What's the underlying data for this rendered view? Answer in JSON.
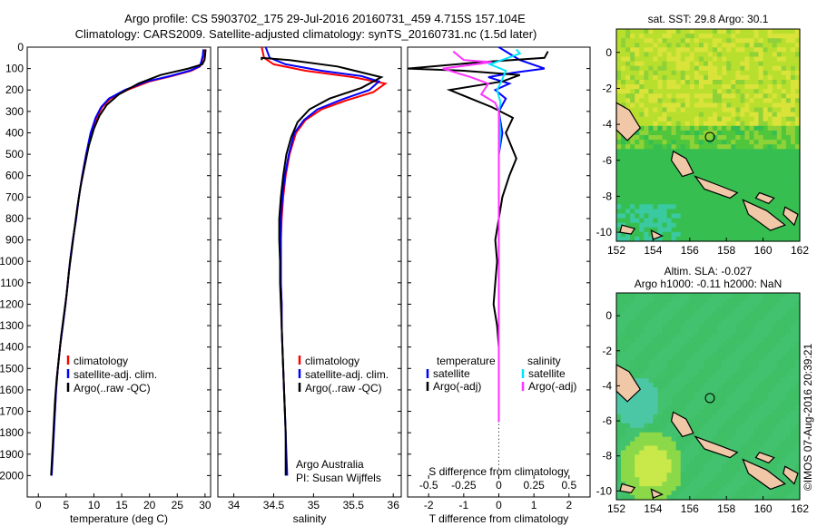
{
  "header": {
    "line1": "Argo profile: CS 5903702_175 29-Jul-2016 20160731_459 4.715S 157.104E",
    "line2": "Climatology: CARS2009. Satellite-adjusted climatology: synTS_20160731.nc (1.5d later)"
  },
  "footer": {
    "imos": "©IMOS 07-Aug-2016 20:39:21"
  },
  "colors": {
    "climatology": "#ff0000",
    "satellite": "#0000ff",
    "argo": "#000000",
    "sal_sat": "#00e5ff",
    "sal_argo": "#ff33ff",
    "land": "#f0c8a8",
    "sst_base": "#33cc33",
    "sla_base": "#3fbf6a"
  },
  "chart_data": [
    {
      "type": "line",
      "xlabel": "temperature (deg C)",
      "ylabel": "",
      "xlim": [
        -2,
        31
      ],
      "ylim": [
        2100,
        0
      ],
      "xticks": [
        0,
        5,
        10,
        15,
        20,
        25,
        30
      ],
      "yticks": [
        0,
        100,
        200,
        300,
        400,
        500,
        600,
        700,
        800,
        900,
        1000,
        1100,
        1200,
        1300,
        1400,
        1500,
        1600,
        1700,
        1800,
        1900,
        2000
      ],
      "legend": [
        "climatology",
        "satellite-adj. clim.",
        "Argo(..raw -QC)"
      ],
      "series": [
        {
          "name": "climatology",
          "color": "#ff0000",
          "points": [
            [
              29.8,
              10
            ],
            [
              29.7,
              40
            ],
            [
              29.4,
              70
            ],
            [
              29.1,
              90
            ],
            [
              27.5,
              110
            ],
            [
              24,
              135
            ],
            [
              20,
              160
            ],
            [
              16,
              200
            ],
            [
              13,
              240
            ],
            [
              11.5,
              280
            ],
            [
              10.5,
              330
            ],
            [
              9.5,
              400
            ],
            [
              8.6,
              500
            ],
            [
              7.9,
              600
            ],
            [
              7.3,
              700
            ],
            [
              6.8,
              800
            ],
            [
              6.2,
              900
            ],
            [
              5.7,
              1000
            ],
            [
              5.3,
              1100
            ],
            [
              4.9,
              1200
            ],
            [
              4.4,
              1300
            ],
            [
              3.9,
              1400
            ],
            [
              3.5,
              1500
            ],
            [
              3.2,
              1600
            ],
            [
              3,
              1700
            ]
          ]
        },
        {
          "name": "satellite-adj. clim.",
          "color": "#0000ff",
          "points": [
            [
              29.7,
              10
            ],
            [
              29.6,
              40
            ],
            [
              29.3,
              70
            ],
            [
              29,
              90
            ],
            [
              27.2,
              110
            ],
            [
              23.7,
              135
            ],
            [
              19.5,
              160
            ],
            [
              15.6,
              200
            ],
            [
              12.7,
              240
            ],
            [
              11.3,
              280
            ],
            [
              10.3,
              330
            ],
            [
              9.4,
              400
            ],
            [
              8.6,
              500
            ],
            [
              7.9,
              600
            ],
            [
              7.3,
              700
            ],
            [
              6.8,
              800
            ],
            [
              6.2,
              900
            ],
            [
              5.7,
              1000
            ],
            [
              5.3,
              1100
            ],
            [
              4.9,
              1200
            ],
            [
              4.4,
              1300
            ],
            [
              3.9,
              1400
            ],
            [
              3.5,
              1500
            ],
            [
              3.2,
              1600
            ],
            [
              3,
              1700
            ],
            [
              2.8,
              1800
            ],
            [
              2.6,
              1900
            ],
            [
              2.4,
              2000
            ]
          ]
        },
        {
          "name": "Argo(..raw -QC)",
          "color": "#000000",
          "points": [
            [
              30.1,
              10
            ],
            [
              30,
              40
            ],
            [
              29.9,
              60
            ],
            [
              29.5,
              80
            ],
            [
              27,
              100
            ],
            [
              22,
              130
            ],
            [
              18,
              170
            ],
            [
              14.5,
              220
            ],
            [
              12.3,
              270
            ],
            [
              11,
              320
            ],
            [
              10,
              380
            ],
            [
              9.1,
              460
            ],
            [
              8.3,
              560
            ],
            [
              7.6,
              650
            ],
            [
              7,
              750
            ],
            [
              6.5,
              850
            ],
            [
              6,
              950
            ],
            [
              5.5,
              1050
            ],
            [
              5.1,
              1150
            ],
            [
              4.6,
              1250
            ],
            [
              4.1,
              1350
            ],
            [
              3.7,
              1450
            ],
            [
              3.3,
              1550
            ],
            [
              3,
              1650
            ],
            [
              2.8,
              1750
            ],
            [
              2.6,
              1850
            ],
            [
              2.4,
              1950
            ],
            [
              2.3,
              2000
            ]
          ]
        }
      ]
    },
    {
      "type": "line",
      "xlabel": "salinity",
      "ylabel": "",
      "xlim": [
        33.8,
        36.1
      ],
      "ylim": [
        2100,
        0
      ],
      "xticks": [
        34,
        34.5,
        35,
        35.5,
        36
      ],
      "legend": [
        "climatology",
        "satellite-adj. clim.",
        "Argo(..raw -QC)"
      ],
      "annotation": [
        "Argo Australia",
        "PI: Susan Wijffels"
      ],
      "series": [
        {
          "name": "climatology",
          "color": "#ff0000",
          "points": [
            [
              34.35,
              0
            ],
            [
              34.38,
              50
            ],
            [
              34.5,
              80
            ],
            [
              34.9,
              110
            ],
            [
              35.5,
              140
            ],
            [
              35.9,
              170
            ],
            [
              35.75,
              210
            ],
            [
              35.4,
              250
            ],
            [
              35.1,
              290
            ],
            [
              34.9,
              340
            ],
            [
              34.78,
              400
            ],
            [
              34.7,
              500
            ],
            [
              34.65,
              600
            ],
            [
              34.62,
              700
            ],
            [
              34.6,
              800
            ],
            [
              34.59,
              900
            ],
            [
              34.59,
              1000
            ],
            [
              34.59,
              1100
            ],
            [
              34.6,
              1200
            ],
            [
              34.6,
              1300
            ],
            [
              34.61,
              1400
            ],
            [
              34.62,
              1500
            ],
            [
              34.63,
              1600
            ],
            [
              34.64,
              1700
            ]
          ]
        },
        {
          "name": "satellite-adj. clim.",
          "color": "#0000ff",
          "points": [
            [
              34.4,
              0
            ],
            [
              34.45,
              50
            ],
            [
              34.65,
              80
            ],
            [
              35.1,
              110
            ],
            [
              35.6,
              135
            ],
            [
              35.82,
              160
            ],
            [
              35.7,
              200
            ],
            [
              35.35,
              245
            ],
            [
              35.05,
              290
            ],
            [
              34.88,
              340
            ],
            [
              34.76,
              400
            ],
            [
              34.69,
              500
            ],
            [
              34.64,
              600
            ],
            [
              34.61,
              700
            ],
            [
              34.59,
              800
            ],
            [
              34.59,
              900
            ],
            [
              34.59,
              1000
            ],
            [
              34.59,
              1100
            ],
            [
              34.6,
              1200
            ],
            [
              34.6,
              1300
            ],
            [
              34.61,
              1400
            ],
            [
              34.62,
              1500
            ],
            [
              34.63,
              1600
            ],
            [
              34.64,
              1700
            ],
            [
              34.65,
              1800
            ],
            [
              34.66,
              1900
            ],
            [
              34.67,
              2000
            ]
          ]
        },
        {
          "name": "Argo(..raw -QC)",
          "color": "#000000",
          "points": [
            [
              34.35,
              60
            ],
            [
              34.35,
              50
            ],
            [
              34.7,
              60
            ],
            [
              35.3,
              90
            ],
            [
              35.85,
              140
            ],
            [
              35.6,
              190
            ],
            [
              35.2,
              240
            ],
            [
              34.95,
              290
            ],
            [
              34.8,
              350
            ],
            [
              34.72,
              420
            ],
            [
              34.66,
              500
            ],
            [
              34.62,
              600
            ],
            [
              34.59,
              700
            ],
            [
              34.57,
              800
            ],
            [
              34.57,
              900
            ],
            [
              34.58,
              1000
            ],
            [
              34.58,
              1100
            ],
            [
              34.59,
              1200
            ],
            [
              34.6,
              1300
            ],
            [
              34.61,
              1400
            ],
            [
              34.62,
              1500
            ],
            [
              34.63,
              1600
            ],
            [
              34.64,
              1700
            ],
            [
              34.65,
              1800
            ],
            [
              34.65,
              1900
            ],
            [
              34.65,
              2000
            ]
          ]
        }
      ]
    },
    {
      "type": "line",
      "xlabel": "T difference from climatology",
      "top_label": "S difference from climatology",
      "xlim": [
        -2.6,
        2.6
      ],
      "ylim": [
        2100,
        0
      ],
      "xticks": [
        -2,
        -1,
        0,
        1,
        2
      ],
      "sticks": [
        -0.5,
        -0.25,
        0,
        0.25,
        0.5
      ],
      "legend_titles": [
        "temperature",
        "salinity"
      ],
      "legend": [
        "satellite",
        "Argo(-adj)",
        "satellite",
        "Argo(-adj)"
      ],
      "series": [
        {
          "name": "temperature satellite",
          "color": "#0000ff",
          "points": [
            [
              0,
              0
            ],
            [
              0.6,
              60
            ],
            [
              1.3,
              100
            ],
            [
              0.4,
              120
            ],
            [
              -0.3,
              140
            ],
            [
              0.3,
              170
            ],
            [
              -0.1,
              200
            ],
            [
              0.2,
              240
            ],
            [
              0,
              300
            ],
            [
              0.1,
              400
            ],
            [
              0,
              500
            ],
            [
              0,
              700
            ],
            [
              0,
              1000
            ],
            [
              0,
              1300
            ],
            [
              0,
              1700
            ],
            [
              0,
              1750
            ]
          ]
        },
        {
          "name": "temperature Argo(-adj)",
          "color": "#000000",
          "points": [
            [
              1.4,
              20
            ],
            [
              1.3,
              50
            ],
            [
              -0.5,
              70
            ],
            [
              -2.6,
              100
            ],
            [
              -1,
              110
            ],
            [
              0.6,
              130
            ],
            [
              0.1,
              160
            ],
            [
              -1.4,
              200
            ],
            [
              -0.8,
              240
            ],
            [
              -0.2,
              280
            ],
            [
              0.4,
              330
            ],
            [
              0.2,
              400
            ],
            [
              0.5,
              520
            ],
            [
              0.3,
              600
            ],
            [
              0.1,
              700
            ],
            [
              0,
              800
            ],
            [
              -0.1,
              900
            ],
            [
              -0.05,
              1000
            ],
            [
              -0.1,
              1100
            ],
            [
              -0.15,
              1200
            ],
            [
              -0.05,
              1300
            ],
            [
              0,
              1400
            ],
            [
              0,
              1700
            ],
            [
              0,
              1750
            ]
          ]
        },
        {
          "name": "salinity satellite",
          "color": "#00e5ff",
          "points": [
            [
              0.5,
              10
            ],
            [
              0.6,
              30
            ],
            [
              -0.25,
              80
            ],
            [
              0.2,
              110
            ],
            [
              0.1,
              150
            ],
            [
              -0.05,
              200
            ],
            [
              0.05,
              260
            ],
            [
              0,
              300
            ],
            [
              0.05,
              400
            ],
            [
              0,
              500
            ],
            [
              0,
              700
            ],
            [
              0,
              1000
            ],
            [
              0,
              1300
            ],
            [
              0,
              1700
            ],
            [
              0,
              1750
            ]
          ]
        },
        {
          "name": "salinity Argo(-adj)",
          "color": "#ff33ff",
          "points": [
            [
              -1.3,
              20
            ],
            [
              -1,
              60
            ],
            [
              -0.2,
              70
            ],
            [
              -1.6,
              100
            ],
            [
              -0.8,
              140
            ],
            [
              -0.3,
              170
            ],
            [
              -0.5,
              220
            ],
            [
              -0.1,
              260
            ],
            [
              0,
              300
            ],
            [
              0,
              500
            ],
            [
              0,
              700
            ],
            [
              0,
              1000
            ],
            [
              0,
              1300
            ],
            [
              0,
              1700
            ],
            [
              0,
              1750
            ]
          ]
        }
      ]
    },
    {
      "type": "heatmap",
      "title": "sat. SST: 29.8 Argo: 30.1",
      "xlim": [
        152,
        162
      ],
      "ylim": [
        -10.5,
        1.3
      ],
      "xticks": [
        152,
        154,
        156,
        158,
        160,
        162
      ],
      "yticks": [
        0,
        -2,
        -4,
        -6,
        -8,
        -10
      ],
      "marker": {
        "lon": 157.1,
        "lat": -4.7
      }
    },
    {
      "type": "heatmap",
      "title": "Altim. SLA: -0.027",
      "subtitle": "Argo h1000: -0.11 h2000: NaN",
      "xlim": [
        152,
        162
      ],
      "ylim": [
        -10.5,
        1.3
      ],
      "xticks": [
        152,
        154,
        156,
        158,
        160,
        162
      ],
      "yticks": [
        0,
        -2,
        -4,
        -6,
        -8,
        -10
      ],
      "marker": {
        "lon": 157.1,
        "lat": -4.7
      }
    }
  ]
}
